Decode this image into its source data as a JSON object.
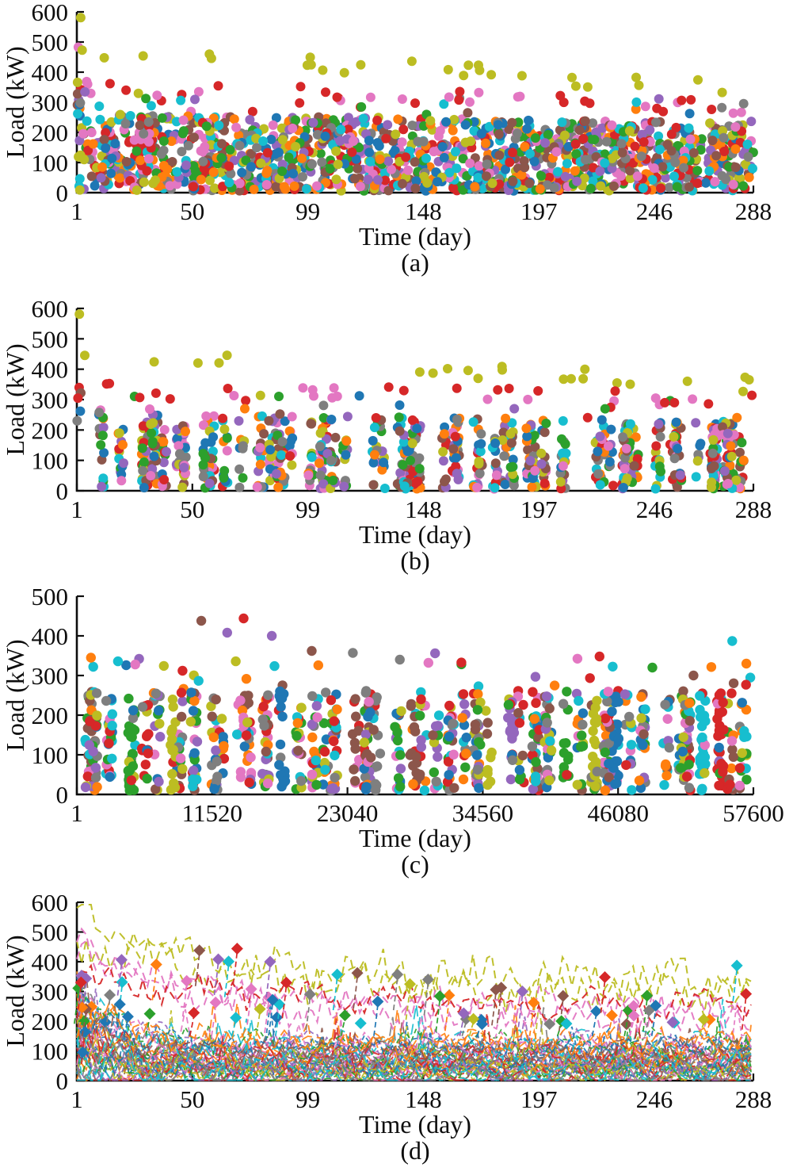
{
  "figure": {
    "background": "#ffffff",
    "axis_color": "#0d0d0d"
  },
  "palette": [
    "#1f77b4",
    "#ff7f0e",
    "#2ca02c",
    "#d62728",
    "#9467bd",
    "#8c564b",
    "#e377c2",
    "#7f7f7f",
    "#bcbd22",
    "#17becf"
  ],
  "chart_data": [
    {
      "id": "a",
      "type": "scatter",
      "caption": "(a)",
      "xlabel": "Time (day)",
      "ylabel": "Load (kW)",
      "xlim": [
        1,
        288
      ],
      "ylim": [
        0,
        600
      ],
      "xticks": [
        1,
        50,
        99,
        148,
        197,
        246,
        288
      ],
      "yticks": [
        0,
        100,
        200,
        300,
        400,
        500,
        600
      ],
      "legend": "none",
      "grid": false,
      "marker": "circle",
      "marker_radius": 6,
      "seed": 101,
      "bulk": {
        "per_series": 142,
        "ymin": 6,
        "ymax": 263,
        "power": 1.12,
        "taper": 0.12
      },
      "trends": [
        {
          "color": 8,
          "count": 26,
          "y0": 468,
          "y1": 348,
          "jitter": 56
        },
        {
          "color": 6,
          "count": 15,
          "y0": 350,
          "y1": 285,
          "jitter": 42
        },
        {
          "color": 3,
          "count": 22,
          "y0": 332,
          "y1": 296,
          "jitter": 68
        }
      ],
      "high_mix": {
        "count": 26,
        "ymin": 252,
        "ymax": 342
      },
      "day1": [
        {
          "color": 8,
          "y": 581
        },
        {
          "color": 6,
          "y": 483
        },
        {
          "color": 8,
          "y": 366
        },
        {
          "color": 3,
          "y": 342
        },
        {
          "color": 5,
          "y": 328
        },
        {
          "color": 4,
          "y": 308
        },
        {
          "color": 7,
          "y": 298
        },
        {
          "color": 0,
          "y": 292
        },
        {
          "color": 1,
          "y": 280
        },
        {
          "color": 9,
          "y": 262
        }
      ]
    },
    {
      "id": "b",
      "type": "scatter",
      "caption": "(b)",
      "xlabel": "Time (day)",
      "ylabel": "Load (kW)",
      "xlim": [
        1,
        288
      ],
      "ylim": [
        0,
        600
      ],
      "xticks": [
        1,
        50,
        99,
        148,
        197,
        246,
        288
      ],
      "yticks": [
        0,
        100,
        200,
        300,
        400,
        500,
        600
      ],
      "legend": "none",
      "grid": false,
      "marker": "circle",
      "marker_radius": 6,
      "seed": 202,
      "bulk": {
        "per_series": 88,
        "ymin": 6,
        "ymax": 258,
        "power": 1.12,
        "taper": 0.12,
        "grid": 64
      },
      "trends": [
        {
          "color": 8,
          "count": 22,
          "y0": 462,
          "y1": 350,
          "jitter": 52
        },
        {
          "color": 6,
          "count": 12,
          "y0": 345,
          "y1": 285,
          "jitter": 40
        },
        {
          "color": 3,
          "count": 18,
          "y0": 330,
          "y1": 295,
          "jitter": 64
        }
      ],
      "high_mix": {
        "count": 18,
        "ymin": 250,
        "ymax": 335
      },
      "day1": [
        {
          "color": 8,
          "y": 581
        },
        {
          "color": 3,
          "y": 340
        },
        {
          "color": 5,
          "y": 322
        },
        {
          "color": 3,
          "y": 305
        },
        {
          "color": 0,
          "y": 262
        },
        {
          "color": 7,
          "y": 230
        }
      ]
    },
    {
      "id": "c",
      "type": "scatter",
      "caption": "(c)",
      "xlabel": "Time (day)",
      "ylabel": "Load (kW)",
      "xlim": [
        1,
        57600
      ],
      "ylim": [
        0,
        500
      ],
      "xticks": [
        1,
        11520,
        23040,
        34560,
        46080,
        57600
      ],
      "yticks": [
        0,
        100,
        200,
        300,
        400,
        500
      ],
      "legend": "none",
      "grid": false,
      "marker": "circle",
      "marker_radius": 6.2,
      "seed": 303,
      "clusters": {
        "count": 48,
        "pts_min": 10,
        "pts_max": 36,
        "x_jitter": 300,
        "mono_prob": 0.42,
        "ymin": 10,
        "ymax": 262,
        "power": 1.12
      },
      "scatter_high": {
        "count": 24,
        "ymin": 262,
        "ymax": 345
      },
      "notable": [
        {
          "x": 10600,
          "y": 438,
          "c": 5
        },
        {
          "x": 14200,
          "y": 444,
          "c": 3
        },
        {
          "x": 12800,
          "y": 408,
          "c": 4
        },
        {
          "x": 16600,
          "y": 400,
          "c": 4
        },
        {
          "x": 20000,
          "y": 362,
          "c": 5
        },
        {
          "x": 23500,
          "y": 357,
          "c": 7
        },
        {
          "x": 27500,
          "y": 340,
          "c": 7
        },
        {
          "x": 30500,
          "y": 356,
          "c": 4
        },
        {
          "x": 44500,
          "y": 348,
          "c": 3
        },
        {
          "x": 55800,
          "y": 387,
          "c": 9
        },
        {
          "x": 49000,
          "y": 320,
          "c": 2
        },
        {
          "x": 52500,
          "y": 300,
          "c": 5
        },
        {
          "x": 1200,
          "y": 345,
          "c": 1
        },
        {
          "x": 1400,
          "y": 322,
          "c": 9
        },
        {
          "x": 4200,
          "y": 326,
          "c": 0
        },
        {
          "x": 5300,
          "y": 342,
          "c": 4
        },
        {
          "x": 9000,
          "y": 312,
          "c": 3
        },
        {
          "x": 57000,
          "y": 330,
          "c": 1
        }
      ]
    },
    {
      "id": "d",
      "type": "line",
      "caption": "(d)",
      "xlabel": "Time (day)",
      "ylabel": "Load (kW)",
      "xlim": [
        1,
        288
      ],
      "ylim": [
        0,
        600
      ],
      "xticks": [
        1,
        50,
        99,
        148,
        197,
        246,
        288
      ],
      "yticks": [
        0,
        100,
        200,
        300,
        400,
        500,
        600
      ],
      "legend": "none",
      "grid": false,
      "marker": "diamond",
      "line_style": "dashed",
      "seed": 404,
      "lines": {
        "count": 52,
        "step": 2,
        "base_min": 14,
        "base_max": 130,
        "noise": 25,
        "left_boost": 1.4,
        "left_tau": 15,
        "width": 1.8,
        "opacity": 0.9,
        "dash": [
          "8 5",
          "11 6",
          "6 4",
          "14 6"
        ]
      },
      "high_lines": [
        {
          "c": 8,
          "start": 575,
          "base": 330,
          "tau": 50,
          "sin": 42,
          "noise": 60
        },
        {
          "c": 8,
          "start": 455,
          "base": 300,
          "tau": 75,
          "sin": 38,
          "noise": 55
        },
        {
          "c": 6,
          "start": 500,
          "base": 238,
          "tau": 30,
          "sin": 30,
          "noise": 48
        },
        {
          "c": 6,
          "start": 428,
          "base": 228,
          "tau": 60,
          "sin": 28,
          "noise": 44
        },
        {
          "c": 3,
          "start": 345,
          "base": 252,
          "tau": 85,
          "sin": 26,
          "noise": 40
        }
      ],
      "diamonds": {
        "count": 55,
        "ymin": 190,
        "ymax": 452,
        "power": 1.8,
        "taper": 0.2,
        "size": 15,
        "spur": true,
        "left_count": 10
      },
      "notable_diamonds": [
        {
          "x": 53,
          "y": 438,
          "c": 5
        },
        {
          "x": 69,
          "y": 444,
          "c": 3
        },
        {
          "x": 61,
          "y": 408,
          "c": 4
        },
        {
          "x": 83,
          "y": 400,
          "c": 4
        },
        {
          "x": 120,
          "y": 362,
          "c": 5
        },
        {
          "x": 137,
          "y": 357,
          "c": 7
        },
        {
          "x": 150,
          "y": 340,
          "c": 7
        },
        {
          "x": 190,
          "y": 300,
          "c": 4
        },
        {
          "x": 225,
          "y": 348,
          "c": 3
        },
        {
          "x": 281,
          "y": 387,
          "c": 9
        }
      ]
    }
  ]
}
